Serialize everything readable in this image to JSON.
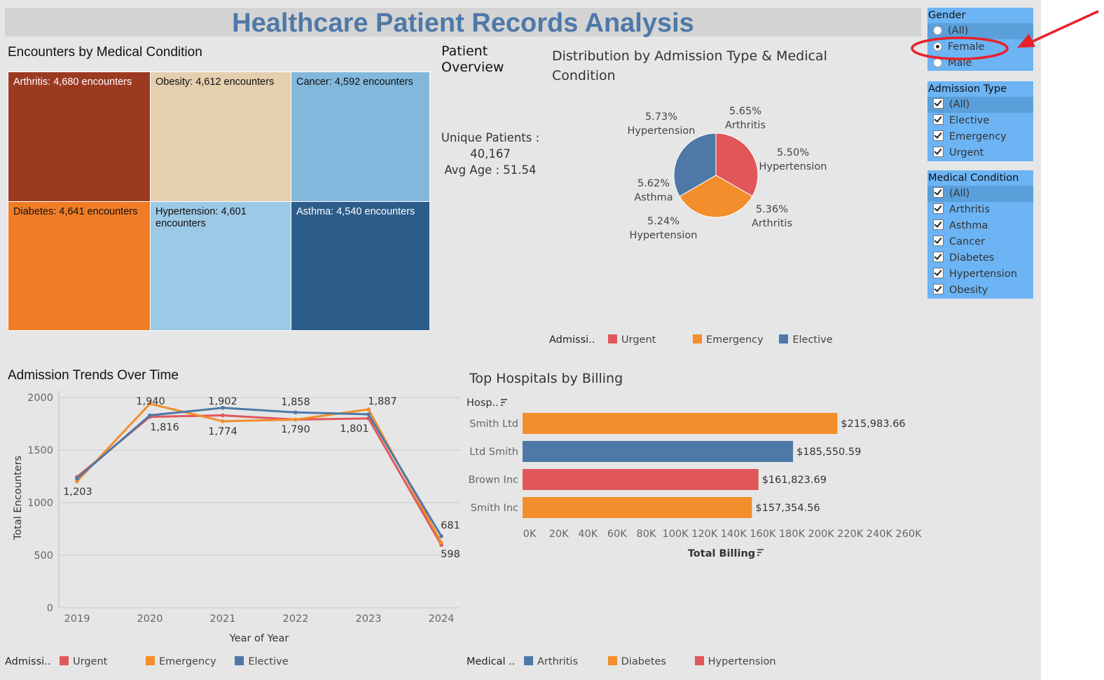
{
  "header": {
    "title": "Healthcare Patient Records Analysis"
  },
  "treemap": {
    "title": "Encounters by Medical Condition",
    "cells": [
      {
        "label": "Arthritis: 4,680 encounters",
        "color": "#9c3a21",
        "text_color": "#ffffff"
      },
      {
        "label": "Obesity: 4,612 encounters",
        "color": "#e4cfae",
        "text_color": "#111111"
      },
      {
        "label": "Cancer: 4,592 encounters",
        "color": "#82b8dc",
        "text_color": "#111111"
      },
      {
        "label": "Diabetes: 4,641 encounters",
        "color": "#f07d26",
        "text_color": "#111111"
      },
      {
        "label": "Hypertension: 4,601 encounters",
        "color": "#9cc9e6",
        "text_color": "#111111"
      },
      {
        "label": "Asthma: 4,540 encounters",
        "color": "#2c5c8a",
        "text_color": "#ffffff"
      }
    ]
  },
  "overview": {
    "title": "Patient Overview",
    "unique_label": "Unique Patients :",
    "unique_value": "40,167",
    "avg_age": "Avg Age : 51.54"
  },
  "pie": {
    "title": "Distribution by Admission Type & Medical Condition",
    "slices": [
      {
        "name": "Urgent",
        "value": 33.3,
        "color": "#e15759"
      },
      {
        "name": "Emergency",
        "value": 33.3,
        "color": "#f28e2b"
      },
      {
        "name": "Elective",
        "value": 33.4,
        "color": "#4e79a7"
      }
    ],
    "labels": [
      {
        "pct": "5.73%",
        "cond": "Hypertension"
      },
      {
        "pct": "5.65%",
        "cond": "Arthritis"
      },
      {
        "pct": "5.50%",
        "cond": "Hypertension"
      },
      {
        "pct": "5.62%",
        "cond": "Asthma"
      },
      {
        "pct": "5.36%",
        "cond": "Arthritis"
      },
      {
        "pct": "5.24%",
        "cond": "Hypertension"
      }
    ],
    "legend": {
      "caption": "Admissi..",
      "items": [
        {
          "label": "Urgent",
          "color": "#e15759"
        },
        {
          "label": "Emergency",
          "color": "#f28e2b"
        },
        {
          "label": "Elective",
          "color": "#4e79a7"
        }
      ]
    }
  },
  "chart_data": [
    {
      "type": "line",
      "title": "Admission Trends Over Time",
      "xlabel": "Year of Year",
      "ylabel": "Total Encounters",
      "categories": [
        "2019",
        "2020",
        "2021",
        "2022",
        "2023",
        "2024"
      ],
      "yticks": [
        "2000",
        "1500",
        "1000",
        "500",
        "0"
      ],
      "ylim": [
        0,
        2000
      ],
      "series": [
        {
          "name": "Urgent",
          "color": "#e15759",
          "values": [
            1245,
            1816,
            1830,
            1790,
            1801,
            598
          ]
        },
        {
          "name": "Emergency",
          "color": "#f28e2b",
          "values": [
            1203,
            1940,
            1774,
            1790,
            1887,
            620
          ]
        },
        {
          "name": "Elective",
          "color": "#4e79a7",
          "values": [
            1230,
            1830,
            1902,
            1858,
            1840,
            681
          ]
        }
      ],
      "data_labels": [
        "1,203",
        "1,940",
        "1,816",
        "1,902",
        "1,774",
        "1,858",
        "1,790",
        "1,887",
        "1,801",
        "681",
        "598"
      ],
      "legend": {
        "caption": "Admissi..",
        "items": [
          {
            "label": "Urgent",
            "color": "#e15759"
          },
          {
            "label": "Emergency",
            "color": "#f28e2b"
          },
          {
            "label": "Elective",
            "color": "#4e79a7"
          }
        ]
      }
    },
    {
      "type": "bar",
      "orientation": "horizontal",
      "title": "Top Hospitals by Billing",
      "ylabel": "Hosp..",
      "xlabel": "Total Billing",
      "categories": [
        "Smith Ltd",
        "Ltd Smith",
        "Brown Inc",
        "Smith Inc"
      ],
      "values": [
        215983.66,
        185550.59,
        161823.69,
        157354.56
      ],
      "value_labels": [
        "$215,983.66",
        "$185,550.59",
        "$161,823.69",
        "$157,354.56"
      ],
      "colors": [
        "#f28e2b",
        "#4e79a7",
        "#e15759",
        "#f28e2b"
      ],
      "xticks": [
        "0K",
        "20K",
        "40K",
        "60K",
        "80K",
        "100K",
        "120K",
        "140K",
        "160K",
        "180K",
        "200K",
        "220K",
        "240K",
        "260K"
      ],
      "xlim": [
        0,
        260000
      ],
      "legend": {
        "caption": "Medical ..",
        "items": [
          {
            "label": "Arthritis",
            "color": "#4e79a7"
          },
          {
            "label": "Diabetes",
            "color": "#f28e2b"
          },
          {
            "label": "Hypertension",
            "color": "#e15759"
          }
        ]
      }
    }
  ],
  "filters": {
    "gender": {
      "title": "Gender",
      "options": [
        "(All)",
        "Female",
        "Male"
      ],
      "selected": "Female"
    },
    "admission_type": {
      "title": "Admission Type",
      "options": [
        "(All)",
        "Elective",
        "Emergency",
        "Urgent"
      ]
    },
    "medical_condition": {
      "title": "Medical Condition",
      "options": [
        "(All)",
        "Arthritis",
        "Asthma",
        "Cancer",
        "Diabetes",
        "Hypertension",
        "Obesity"
      ]
    }
  },
  "annotation": {
    "color": "#e8212b"
  }
}
